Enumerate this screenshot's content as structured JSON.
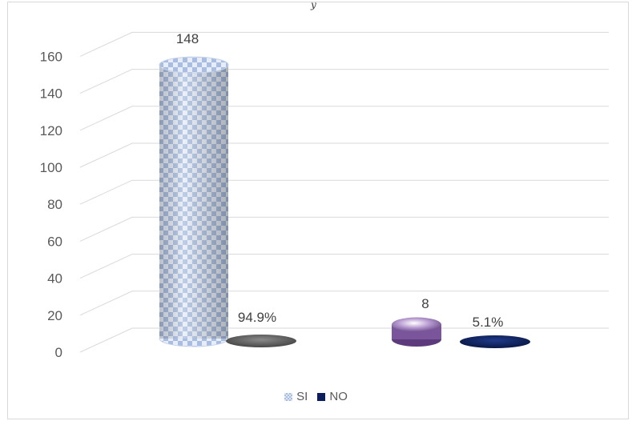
{
  "top_glyph": "y",
  "chart_data": {
    "type": "bar",
    "categories": [
      "",
      ""
    ],
    "series": [
      {
        "name": "SI",
        "values": [
          148,
          8
        ],
        "colors": [
          "#a9bde0",
          "#8e6bb0"
        ],
        "labels": [
          "148",
          "8"
        ]
      },
      {
        "name": "NO",
        "values": [
          0,
          0
        ],
        "colors": [
          "#555555",
          "#0b1f5c"
        ],
        "labels": [
          "94.9%",
          "5.1%"
        ]
      }
    ],
    "ylim": [
      0,
      160
    ],
    "yticks": [
      0,
      20,
      40,
      60,
      80,
      100,
      120,
      140,
      160
    ],
    "grid": true,
    "legend_position": "bottom"
  },
  "legend": [
    {
      "label": "SI",
      "color": "#a9bde0"
    },
    {
      "label": "NO",
      "color": "#0b1f5c"
    }
  ]
}
